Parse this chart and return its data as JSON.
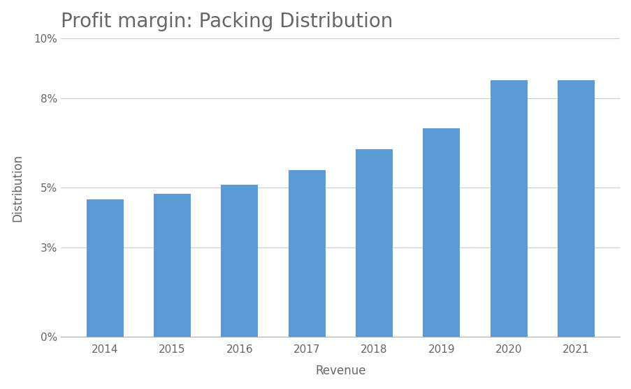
{
  "title": "Profit margin: Packing Distribution",
  "xlabel": "Revenue",
  "ylabel": "Distribution",
  "categories": [
    "2014",
    "2015",
    "2016",
    "2017",
    "2018",
    "2019",
    "2020",
    "2021"
  ],
  "values": [
    0.046,
    0.048,
    0.051,
    0.056,
    0.063,
    0.07,
    0.086,
    0.086
  ],
  "bar_color": "#5b9bd5",
  "background_color": "#ffffff",
  "ylim": [
    0,
    0.1
  ],
  "yticks": [
    0,
    0.03,
    0.05,
    0.08,
    0.1
  ],
  "ytick_labels": [
    "0%",
    "3%",
    "5%",
    "8%",
    "10%"
  ],
  "grid_color": "#cccccc",
  "title_fontsize": 20,
  "axis_label_fontsize": 12,
  "tick_fontsize": 11,
  "title_color": "#666666",
  "label_color": "#666666",
  "tick_color": "#666666"
}
